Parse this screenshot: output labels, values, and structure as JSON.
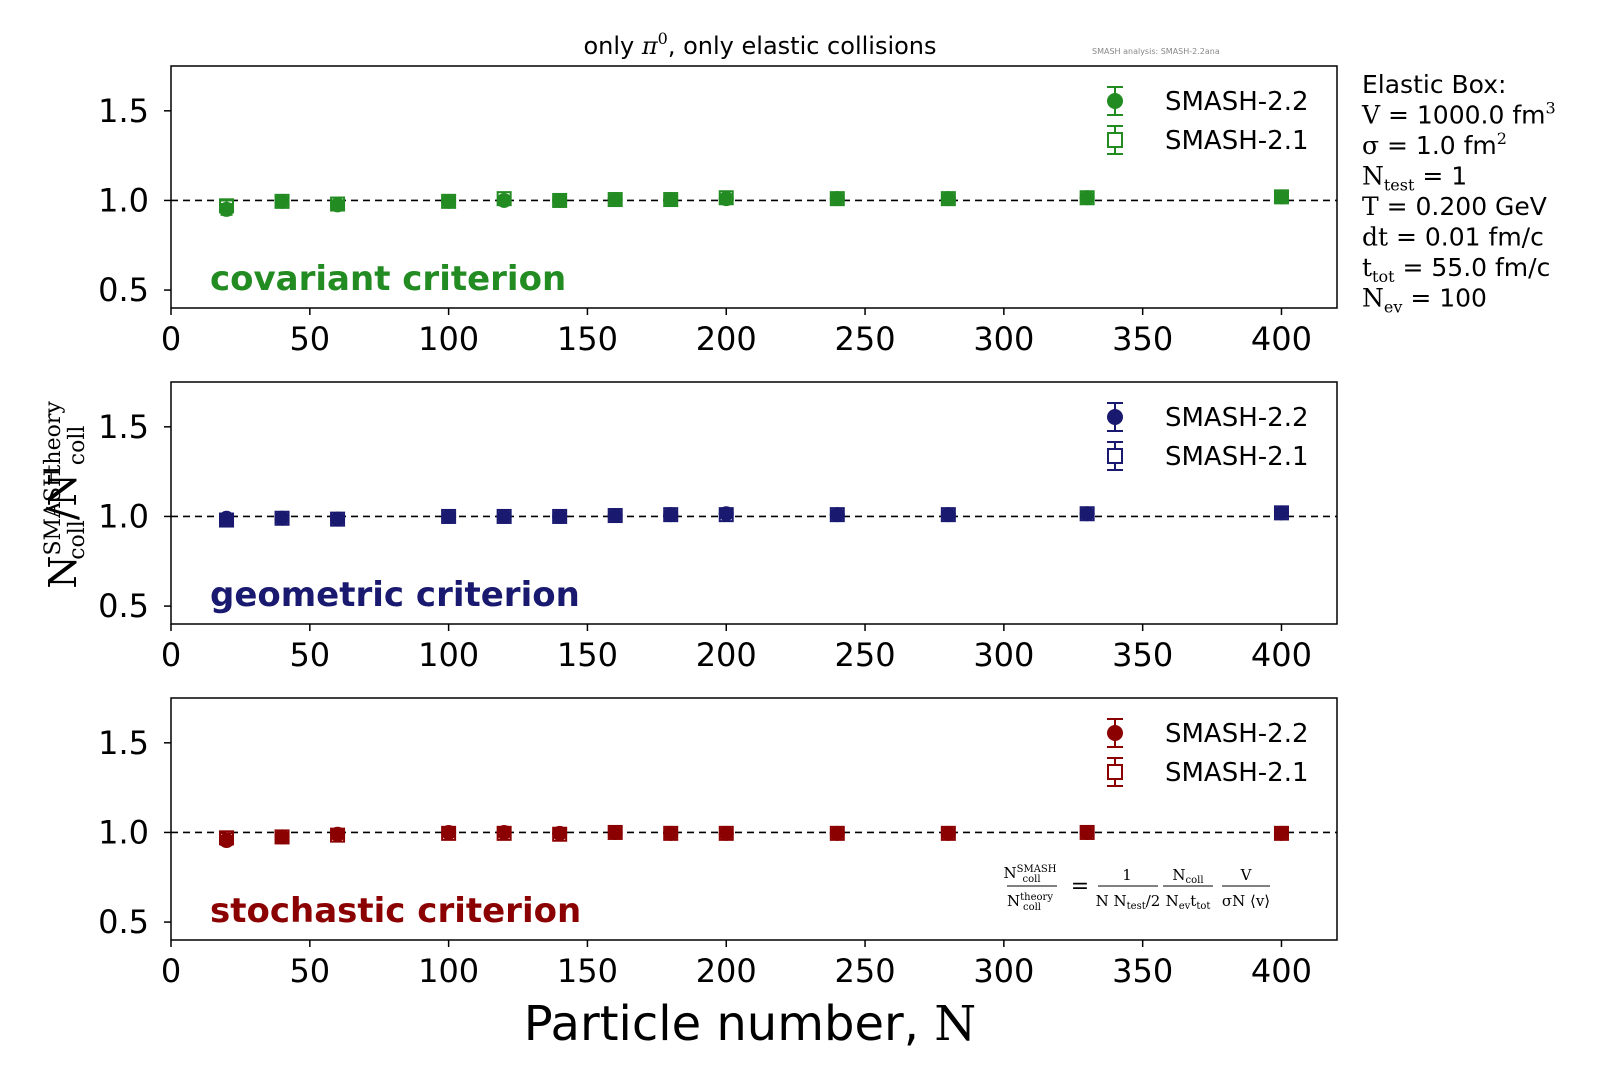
{
  "figure": {
    "title": {
      "pre": "only ",
      "sym": "π",
      "sup": "0",
      "post": ", only elastic collisions"
    },
    "watermark": "SMASH analysis: SMASH-2.2ana",
    "ylabel": {
      "a": "N",
      "a_sup": "SMASH",
      "a_sub": "coll",
      "slash": "/",
      "b": "N",
      "b_sup": "theory",
      "b_sub": "coll"
    },
    "xlabel": {
      "text": "Particle number, ",
      "var": "N"
    },
    "info_box": [
      {
        "main": "Elastic Box:",
        "sub": "",
        "sup": "",
        "value": ""
      },
      {
        "main": "V",
        "sub": "",
        "sup": "3",
        "value": " = 1000.0 fm"
      },
      {
        "main": "σ",
        "sub": "",
        "sup": "2",
        "value": " = 1.0 fm"
      },
      {
        "main": "N",
        "sub": "test",
        "sup": "",
        "value": " = 1"
      },
      {
        "main": "T",
        "sub": "",
        "sup": "",
        "value": " = 0.200 GeV"
      },
      {
        "main": "dt",
        "sub": "",
        "sup": "",
        "value": " = 0.01 fm/c"
      },
      {
        "main": "t",
        "sub": "tot",
        "sup": "",
        "value": " = 55.0 fm/c"
      },
      {
        "main": "N",
        "sub": "ev",
        "sup": "",
        "value": " = 100"
      }
    ],
    "formula": {
      "lhs_num": "N",
      "lhs_num_sup": "SMASH",
      "lhs_num_sub": "coll",
      "lhs_den": "N",
      "lhs_den_sup": "theory",
      "lhs_den_sub": "coll",
      "eq": "=",
      "f1_num": "1",
      "f1_den_a": "N N",
      "f1_den_sub": "test",
      "f1_den_b": "/2",
      "f2_num": "N",
      "f2_num_sub": "coll",
      "f2_den_a": "N",
      "f2_den_sub1": "ev",
      "f2_den_b": "t",
      "f2_den_sub2": "tot",
      "f3_num": "V",
      "f3_den": "σN ⟨v⟩"
    }
  },
  "chart_data": [
    {
      "type": "scatter",
      "annotation": "covariant criterion",
      "color": "#228b22",
      "x_ticks": [
        "0",
        "50",
        "100",
        "150",
        "200",
        "250",
        "300",
        "350",
        "400"
      ],
      "y_ticks": [
        "0.5",
        "1.0",
        "1.5"
      ],
      "xlim": [
        0,
        420
      ],
      "ylim": [
        0.4,
        1.75
      ],
      "reference_line": 1.0,
      "legend": {
        "placement": "top-right",
        "entries": [
          "SMASH-2.2",
          "SMASH-2.1"
        ]
      },
      "series": [
        {
          "name": "SMASH-2.2",
          "marker": "filled-circle",
          "x": [
            20,
            40,
            60,
            100,
            120,
            140,
            160,
            180,
            200,
            240,
            280,
            330,
            400
          ],
          "y": [
            0.95,
            0.995,
            0.975,
            0.995,
            1.0,
            1.0,
            1.005,
            1.005,
            1.01,
            1.01,
            1.01,
            1.015,
            1.02
          ],
          "yerr": [
            0.03,
            0.015,
            0.02,
            0.012,
            0.01,
            0.01,
            0.01,
            0.01,
            0.012,
            0.01,
            0.01,
            0.012,
            0.01
          ]
        },
        {
          "name": "SMASH-2.1",
          "marker": "open-square",
          "x": [
            20,
            40,
            60,
            100,
            120,
            140,
            160,
            180,
            200,
            240,
            280,
            330,
            400
          ],
          "y": [
            0.97,
            0.995,
            0.98,
            0.995,
            1.01,
            1.0,
            1.005,
            1.005,
            1.015,
            1.01,
            1.01,
            1.015,
            1.02
          ],
          "yerr": [
            0.03,
            0.015,
            0.02,
            0.012,
            0.012,
            0.01,
            0.01,
            0.01,
            0.012,
            0.01,
            0.01,
            0.012,
            0.01
          ]
        }
      ]
    },
    {
      "type": "scatter",
      "annotation": "geometric criterion",
      "color": "#191970",
      "x_ticks": [
        "0",
        "50",
        "100",
        "150",
        "200",
        "250",
        "300",
        "350",
        "400"
      ],
      "y_ticks": [
        "0.5",
        "1.0",
        "1.5"
      ],
      "xlim": [
        0,
        420
      ],
      "ylim": [
        0.4,
        1.75
      ],
      "reference_line": 1.0,
      "legend": {
        "placement": "top-right",
        "entries": [
          "SMASH-2.2",
          "SMASH-2.1"
        ]
      },
      "series": [
        {
          "name": "SMASH-2.2",
          "marker": "filled-circle",
          "x": [
            20,
            40,
            60,
            100,
            120,
            140,
            160,
            180,
            200,
            240,
            280,
            330,
            400
          ],
          "y": [
            0.99,
            0.99,
            0.985,
            1.0,
            1.0,
            1.0,
            1.005,
            1.01,
            1.015,
            1.01,
            1.01,
            1.015,
            1.02
          ],
          "yerr": [
            0.025,
            0.015,
            0.02,
            0.012,
            0.01,
            0.01,
            0.01,
            0.01,
            0.012,
            0.01,
            0.01,
            0.01,
            0.01
          ]
        },
        {
          "name": "SMASH-2.1",
          "marker": "open-square",
          "x": [
            20,
            40,
            60,
            100,
            120,
            140,
            160,
            180,
            200,
            240,
            280,
            330,
            400
          ],
          "y": [
            0.98,
            0.99,
            0.985,
            1.0,
            1.0,
            1.0,
            1.005,
            1.01,
            1.01,
            1.01,
            1.01,
            1.015,
            1.02
          ],
          "yerr": [
            0.025,
            0.015,
            0.02,
            0.012,
            0.01,
            0.01,
            0.01,
            0.01,
            0.012,
            0.01,
            0.01,
            0.01,
            0.01
          ]
        }
      ]
    },
    {
      "type": "scatter",
      "annotation": "stochastic criterion",
      "color": "#8b0000",
      "x_ticks": [
        "0",
        "50",
        "100",
        "150",
        "200",
        "250",
        "300",
        "350",
        "400"
      ],
      "y_ticks": [
        "0.5",
        "1.0",
        "1.5"
      ],
      "xlim": [
        0,
        420
      ],
      "ylim": [
        0.4,
        1.75
      ],
      "reference_line": 1.0,
      "legend": {
        "placement": "top-right",
        "entries": [
          "SMASH-2.2",
          "SMASH-2.1"
        ]
      },
      "series": [
        {
          "name": "SMASH-2.2",
          "marker": "filled-circle",
          "x": [
            20,
            40,
            60,
            100,
            120,
            140,
            160,
            180,
            200,
            240,
            280,
            330,
            400
          ],
          "y": [
            0.955,
            0.975,
            0.99,
            1.0,
            1.0,
            0.995,
            1.0,
            0.995,
            0.995,
            0.995,
            0.995,
            1.0,
            0.995
          ],
          "yerr": [
            0.025,
            0.015,
            0.02,
            0.015,
            0.012,
            0.012,
            0.01,
            0.01,
            0.01,
            0.01,
            0.01,
            0.01,
            0.01
          ]
        },
        {
          "name": "SMASH-2.1",
          "marker": "open-square",
          "x": [
            20,
            40,
            60,
            100,
            120,
            140,
            160,
            180,
            200,
            240,
            280,
            330,
            400
          ],
          "y": [
            0.97,
            0.975,
            0.985,
            0.995,
            0.995,
            0.99,
            1.0,
            0.995,
            0.995,
            0.995,
            0.995,
            1.0,
            0.995
          ],
          "yerr": [
            0.025,
            0.015,
            0.02,
            0.015,
            0.012,
            0.012,
            0.01,
            0.01,
            0.01,
            0.01,
            0.01,
            0.01,
            0.01
          ]
        }
      ]
    }
  ]
}
